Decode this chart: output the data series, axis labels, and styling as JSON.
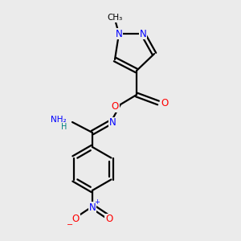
{
  "background_color": "#ebebeb",
  "atom_colors": {
    "N": "#0000ff",
    "O": "#ff0000",
    "C": "#000000",
    "H": "#008080"
  },
  "bond_lw": 1.6,
  "font_size": 8.5
}
